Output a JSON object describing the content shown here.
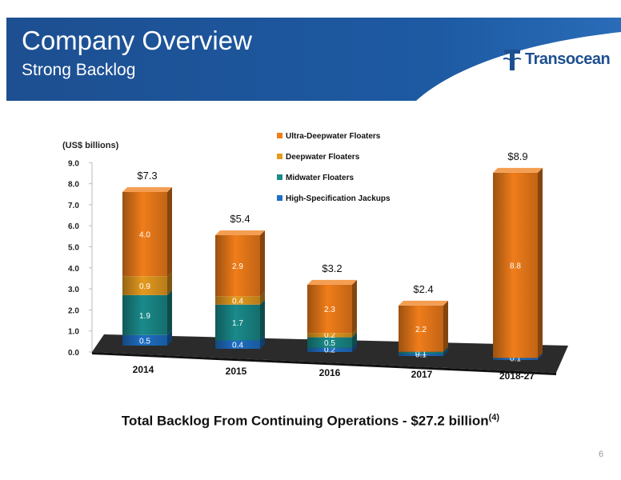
{
  "slide": {
    "title": "Company Overview",
    "subtitle": "Strong Backlog",
    "logo_text": "Transocean",
    "footer_text": "Total Backlog From Continuing Operations - $27.2 billion",
    "footer_note": "(4)",
    "page_number": "6"
  },
  "colors": {
    "header_blue": "#1d4f91",
    "ultra": "#f07d1a",
    "deepwater": "#e59a1e",
    "midwater": "#1a8a8a",
    "jackups": "#1f6fc4"
  },
  "chart_data": {
    "type": "bar",
    "stacked": true,
    "ylabel": "(US$ billions)",
    "ylim": [
      0,
      9
    ],
    "yticks": [
      "0.0",
      "1.0",
      "2.0",
      "3.0",
      "4.0",
      "5.0",
      "6.0",
      "7.0",
      "8.0",
      "9.0"
    ],
    "categories": [
      "2014",
      "2015",
      "2016",
      "2017",
      "2018-27"
    ],
    "totals": [
      "$7.3",
      "$5.4",
      "$3.2",
      "$2.4",
      "$8.9"
    ],
    "legend_position": "top-center",
    "series": [
      {
        "name": "High-Specification Jackups",
        "color": "#1f6fc4",
        "values": [
          0.5,
          0.4,
          0.2,
          0.1,
          0.1
        ],
        "labels": [
          "0.5",
          "0.4",
          "0.2",
          "0.1",
          "0.1"
        ]
      },
      {
        "name": "Midwater Floaters",
        "color": "#1a8a8a",
        "values": [
          1.9,
          1.7,
          0.5,
          0.1,
          0
        ],
        "labels": [
          "1.9",
          "1.7",
          "0.5",
          "0.1",
          ""
        ]
      },
      {
        "name": "Deepwater Floaters",
        "color": "#e59a1e",
        "values": [
          0.9,
          0.4,
          0.2,
          0,
          0
        ],
        "labels": [
          "0.9",
          "0.4",
          "0.2",
          "",
          ""
        ]
      },
      {
        "name": "Ultra-Deepwater Floaters",
        "color": "#f07d1a",
        "values": [
          4.0,
          2.9,
          2.3,
          2.2,
          8.8
        ],
        "labels": [
          "4.0",
          "2.9",
          "2.3",
          "2.2",
          "8.8"
        ]
      }
    ]
  }
}
